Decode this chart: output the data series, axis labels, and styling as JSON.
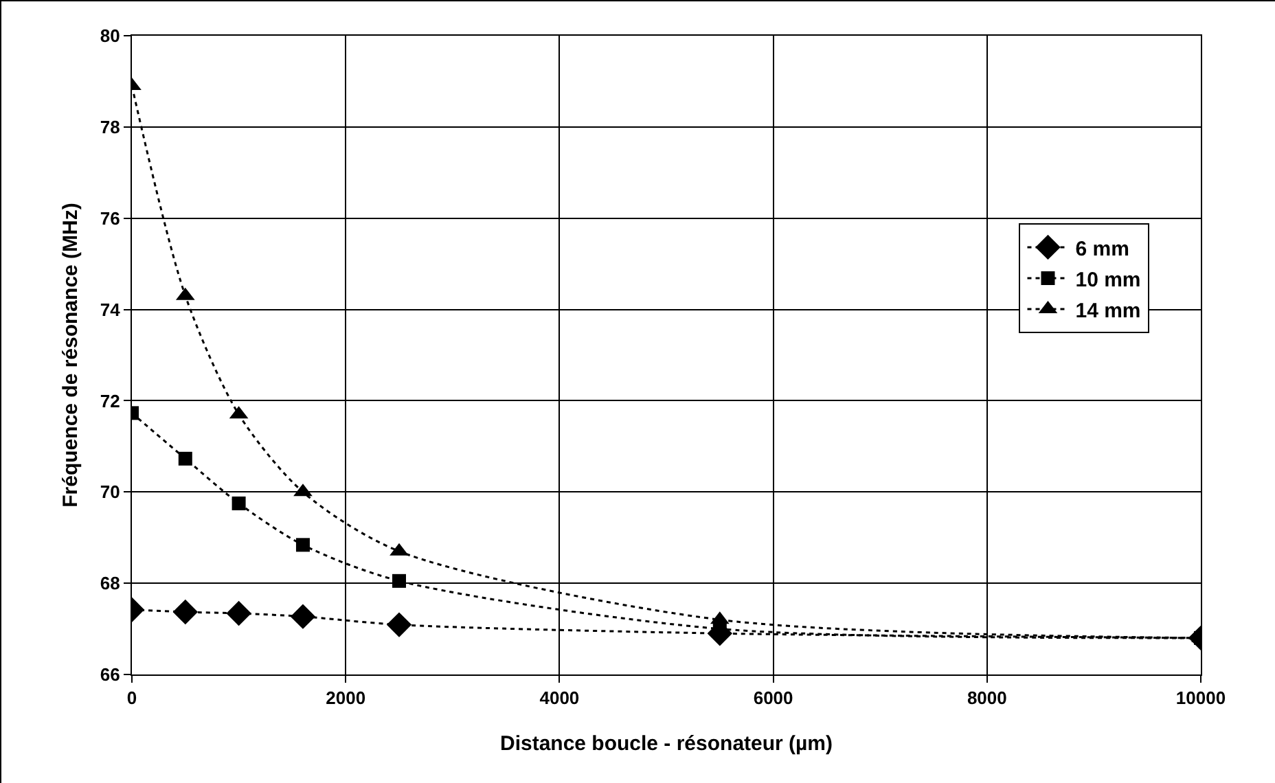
{
  "chart_data": {
    "type": "line",
    "xlabel": "Distance boucle - résonateur (µm)",
    "ylabel": "Fréquence de résonance (MHz)",
    "x": [
      0,
      500,
      1000,
      1600,
      2500,
      5500,
      10000
    ],
    "series": [
      {
        "name": "6 mm",
        "color": "#000000",
        "marker": "diamond",
        "values": [
          67.42,
          67.37,
          67.34,
          67.27,
          67.09,
          66.9,
          66.8
        ]
      },
      {
        "name": "10 mm",
        "color": "#000000",
        "marker": "square",
        "values": [
          71.73,
          70.73,
          69.75,
          68.84,
          68.05,
          67.0,
          66.8
        ]
      },
      {
        "name": "14 mm",
        "color": "#000000",
        "marker": "triangle",
        "values": [
          78.9,
          74.3,
          71.7,
          70.0,
          68.7,
          67.2,
          66.8
        ]
      }
    ],
    "xlim": [
      0,
      10000
    ],
    "xticks": [
      0,
      2000,
      4000,
      6000,
      8000,
      10000
    ],
    "ylim": [
      66,
      80
    ],
    "yticks": [
      66,
      68,
      70,
      72,
      74,
      76,
      78,
      80
    ],
    "grid": true,
    "legend": "right",
    "line_style": "dotted"
  }
}
